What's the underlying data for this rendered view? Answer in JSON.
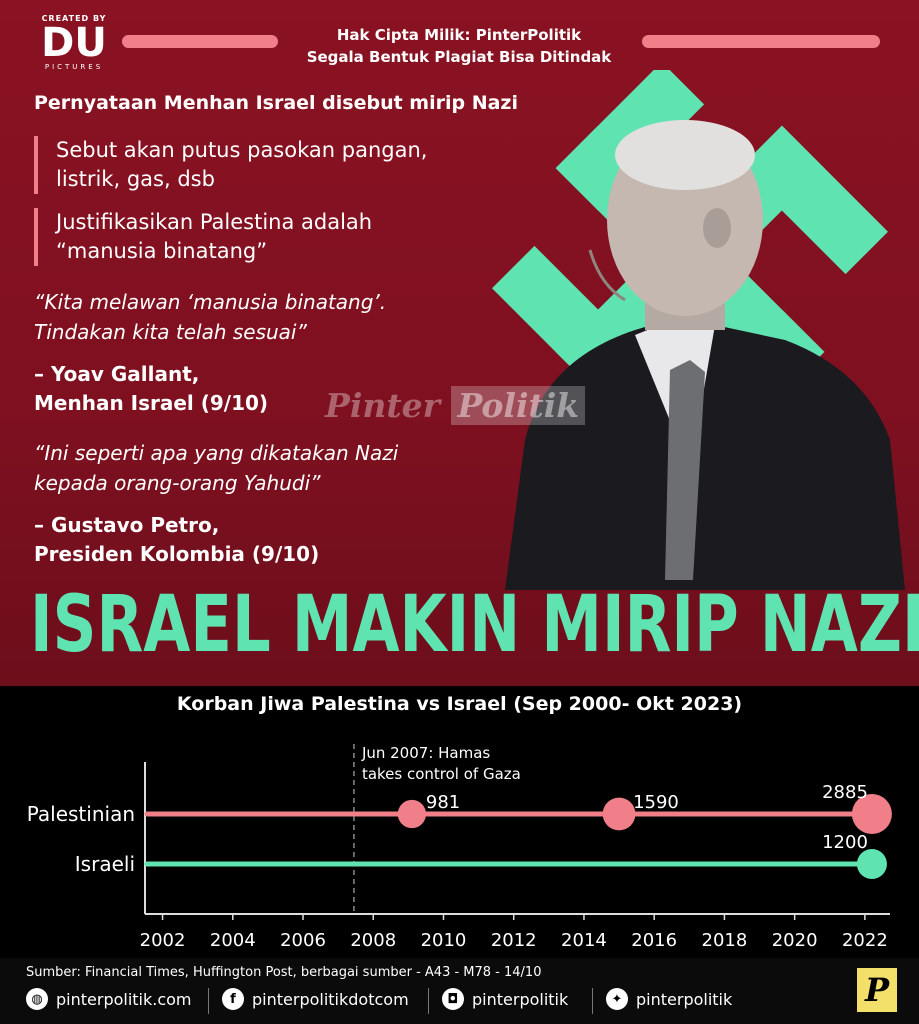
{
  "branding": {
    "created_by": "CREATED BY",
    "logo_main": "DU",
    "logo_sub": "PICTURES",
    "copyright_line1": "Hak Cipta Milik: PinterPolitik",
    "copyright_line2": "Segala Bentuk Plagiat Bisa Ditindak",
    "watermark_a": "Pinter",
    "watermark_b": "Politik",
    "p_logo": "P"
  },
  "content": {
    "headline": "Pernyataan Menhan Israel disebut mirip Nazi",
    "bullets": [
      {
        "line1": "Sebut akan putus pasokan pangan,",
        "line2": "listrik, gas, dsb"
      },
      {
        "line1": "Justifikasikan Palestina adalah",
        "line2": "“manusia binatang”"
      }
    ],
    "quote1": {
      "line1": "“Kita melawan ‘manusia binatang’.",
      "line2": "Tindakan kita telah sesuai”"
    },
    "author1": {
      "line1": "– Yoav Gallant,",
      "line2": "Menhan Israel (9/10)"
    },
    "quote2": {
      "line1": "“Ini seperti apa yang dikatakan Nazi",
      "line2": "kepada orang-orang Yahudi”"
    },
    "author2": {
      "line1": "– Gustavo Petro,",
      "line2": "Presiden Kolombia (9/10)"
    },
    "big_title": "ISRAEL MAKIN MIRIP NAZI?"
  },
  "colors": {
    "background_red": "#8e1526",
    "accent_pink": "#f07f8a",
    "accent_green": "#5fe3b1"
  },
  "chart_data": {
    "type": "scatter",
    "title": "Korban Jiwa Palestina vs Israel (Sep 2000- Okt 2023)",
    "xlabel": "",
    "ylabel": "",
    "x_ticks": [
      "2002",
      "2004",
      "2006",
      "2008",
      "2010",
      "2012",
      "2014",
      "2016",
      "2018",
      "2020",
      "2022"
    ],
    "xlim": [
      2001.5,
      2023.0
    ],
    "annotation": {
      "x": 2007.45,
      "line1": "Jun 2007: Hamas",
      "line2": "takes control of Gaza"
    },
    "series": [
      {
        "name": "Palestinian",
        "color": "#f07f8a",
        "points": [
          {
            "x": 2009.1,
            "value": 981,
            "label": "981"
          },
          {
            "x": 2015.0,
            "value": 1590,
            "label": "1590"
          },
          {
            "x": 2022.2,
            "value": 2885,
            "label": "2885"
          }
        ]
      },
      {
        "name": "Israeli",
        "color": "#5fe3b1",
        "points": [
          {
            "x": 2022.2,
            "value": 1200,
            "label": "1200"
          }
        ]
      }
    ]
  },
  "footer": {
    "source": "Sumber: Financial Times, Huffington Post, berbagai sumber - A43 -  M78 - 14/10",
    "web": "pinterpolitik.com",
    "facebook": "pinterpolitikdotcom",
    "instagram": "pinterpolitik",
    "twitter": "pinterpolitik",
    "icons": [
      "globe-icon",
      "facebook-icon",
      "instagram-icon",
      "twitter-icon"
    ]
  }
}
